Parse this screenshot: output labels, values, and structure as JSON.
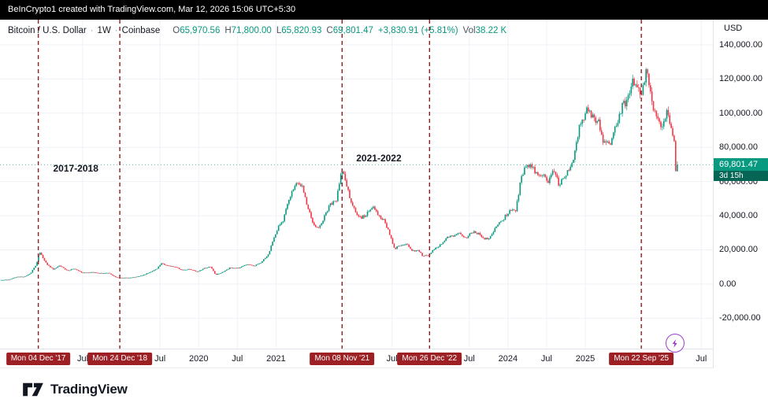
{
  "colors": {
    "up": "#089981",
    "down": "#f23645",
    "grid": "#eef1f7",
    "event_line": "#8c1d22",
    "event_badge": "#9d2025",
    "last_badge": "#089981",
    "countdown_bg": "#056656",
    "axis_line": "#e0e3eb",
    "topbar_bg": "#000000",
    "flash": "#9b3cc8",
    "text": "#131722",
    "muted": "#50535e"
  },
  "top_bar": {
    "text": "BeInCrypto1 created with TradingView.com, Mar 12, 2026 15:06 UTC+5:30"
  },
  "legend": {
    "title": "Bitcoin / U.S. Dollar",
    "separator": "·",
    "interval": "1W",
    "exchange": "Coinbase",
    "fields": [
      {
        "label": "O",
        "value": "65,970.56"
      },
      {
        "label": "H",
        "value": "71,800.00"
      },
      {
        "label": "L",
        "value": "65,820.93"
      },
      {
        "label": "C",
        "value": "69,801.47"
      }
    ],
    "change": "+3,830.91 (+5.81%)",
    "vol_label": "Vol",
    "vol_value": "38.22 K"
  },
  "price_scale": {
    "currency": "USD",
    "ticks": [
      {
        "value": 140000,
        "label": "140,000.00"
      },
      {
        "value": 120000,
        "label": "120,000.00"
      },
      {
        "value": 100000,
        "label": "100,000.00"
      },
      {
        "value": 80000,
        "label": "80,000.00"
      },
      {
        "value": 60000,
        "label": "60,000.00"
      },
      {
        "value": 40000,
        "label": "40,000.00"
      },
      {
        "value": 20000,
        "label": "20,000.00"
      },
      {
        "value": 0,
        "label": "0.00"
      },
      {
        "value": -20000,
        "label": "-20,000.00"
      }
    ],
    "last": {
      "price": 69801.47,
      "price_label": "69,801.47",
      "countdown": "3d 15h"
    }
  },
  "time_scale": {
    "ticks": [
      {
        "label": "Mon 04 Dec '17",
        "t": 2017.925,
        "badge": true
      },
      {
        "label": "Jul",
        "t": 2018.5,
        "badge": false
      },
      {
        "label": "Mon 24 Dec '18",
        "t": 2018.98,
        "badge": true
      },
      {
        "label": "Jul",
        "t": 2019.5,
        "badge": false
      },
      {
        "label": "2020",
        "t": 2020.0,
        "badge": false
      },
      {
        "label": "Jul",
        "t": 2020.5,
        "badge": false
      },
      {
        "label": "2021",
        "t": 2021.0,
        "badge": false
      },
      {
        "label": "Mon 08 Nov '21",
        "t": 2021.855,
        "badge": true
      },
      {
        "label": "Jul",
        "t": 2022.5,
        "badge": false
      },
      {
        "label": "Mon 26 Dec '22",
        "t": 2022.985,
        "badge": true
      },
      {
        "label": "Jul",
        "t": 2023.5,
        "badge": false
      },
      {
        "label": "2024",
        "t": 2024.0,
        "badge": false
      },
      {
        "label": "Jul",
        "t": 2024.5,
        "badge": false
      },
      {
        "label": "2025",
        "t": 2025.0,
        "badge": false
      },
      {
        "label": "Mon 22 Sep '25",
        "t": 2025.725,
        "badge": true
      },
      {
        "label": "Jul",
        "t": 2026.5,
        "badge": false
      }
    ]
  },
  "annotations": [
    {
      "text": "2017-2018",
      "t": 2018.41,
      "price": 67500
    },
    {
      "text": "2021-2022",
      "t": 2022.33,
      "price": 73500
    }
  ],
  "footer": {
    "brand": "TradingView"
  },
  "chart_data": {
    "type": "candlestick",
    "title": "Bitcoin / U.S. Dollar · 1W · Coinbase",
    "symbol": "BTCUSD",
    "exchange": "Coinbase",
    "interval": "1W",
    "currency": "USD",
    "x_domain_years": [
      2017.43,
      2026.65
    ],
    "y_view": [
      -37800,
      154700
    ],
    "y_axis": {
      "min": -20000,
      "max": 140000,
      "step": 20000
    },
    "last_candle": {
      "open": 65970.56,
      "high": 71800.0,
      "low": 65820.93,
      "close": 69801.47,
      "change": 3830.91,
      "change_pct": 5.81,
      "volume": "38.22 K"
    },
    "event_markers": [
      {
        "label": "Mon 04 Dec '17",
        "t": 2017.925
      },
      {
        "label": "Mon 24 Dec '18",
        "t": 2018.98
      },
      {
        "label": "Mon 08 Nov '21",
        "t": 2021.855
      },
      {
        "label": "Mon 26 Dec '22",
        "t": 2022.985
      },
      {
        "label": "Mon 22 Sep '25",
        "t": 2025.725
      }
    ],
    "price_path_anchors": [
      [
        2017.43,
        2300
      ],
      [
        2017.55,
        2600
      ],
      [
        2017.65,
        4200
      ],
      [
        2017.75,
        4350
      ],
      [
        2017.83,
        6500
      ],
      [
        2017.9,
        11500
      ],
      [
        2017.94,
        19200
      ],
      [
        2018.0,
        14000
      ],
      [
        2018.06,
        10500
      ],
      [
        2018.12,
        8600
      ],
      [
        2018.2,
        10800
      ],
      [
        2018.3,
        7700
      ],
      [
        2018.38,
        9000
      ],
      [
        2018.5,
        6500
      ],
      [
        2018.6,
        6900
      ],
      [
        2018.72,
        6350
      ],
      [
        2018.84,
        6400
      ],
      [
        2018.92,
        4100
      ],
      [
        2018.98,
        3600
      ],
      [
        2019.08,
        3700
      ],
      [
        2019.18,
        4000
      ],
      [
        2019.28,
        5200
      ],
      [
        2019.38,
        7200
      ],
      [
        2019.46,
        9000
      ],
      [
        2019.52,
        12300
      ],
      [
        2019.58,
        10800
      ],
      [
        2019.68,
        10300
      ],
      [
        2019.78,
        8200
      ],
      [
        2019.88,
        8600
      ],
      [
        2019.98,
        7200
      ],
      [
        2020.08,
        9300
      ],
      [
        2020.15,
        10200
      ],
      [
        2020.22,
        5400
      ],
      [
        2020.3,
        6800
      ],
      [
        2020.4,
        9400
      ],
      [
        2020.52,
        9250
      ],
      [
        2020.62,
        11600
      ],
      [
        2020.72,
        10700
      ],
      [
        2020.82,
        13100
      ],
      [
        2020.9,
        17500
      ],
      [
        2020.97,
        26000
      ],
      [
        2021.03,
        33500
      ],
      [
        2021.09,
        36500
      ],
      [
        2021.16,
        49000
      ],
      [
        2021.23,
        57000
      ],
      [
        2021.29,
        59500
      ],
      [
        2021.34,
        56500
      ],
      [
        2021.41,
        45000
      ],
      [
        2021.48,
        34500
      ],
      [
        2021.54,
        33000
      ],
      [
        2021.6,
        36500
      ],
      [
        2021.66,
        43000
      ],
      [
        2021.72,
        47500
      ],
      [
        2021.78,
        49500
      ],
      [
        2021.83,
        62500
      ],
      [
        2021.87,
        65500
      ],
      [
        2021.92,
        57000
      ],
      [
        2021.97,
        47500
      ],
      [
        2022.04,
        41500
      ],
      [
        2022.1,
        38500
      ],
      [
        2022.17,
        40500
      ],
      [
        2022.25,
        46000
      ],
      [
        2022.33,
        40000
      ],
      [
        2022.41,
        36500
      ],
      [
        2022.47,
        29000
      ],
      [
        2022.53,
        20500
      ],
      [
        2022.61,
        22800
      ],
      [
        2022.68,
        23800
      ],
      [
        2022.76,
        19400
      ],
      [
        2022.84,
        19600
      ],
      [
        2022.9,
        16300
      ],
      [
        2022.98,
        16800
      ],
      [
        2023.06,
        21200
      ],
      [
        2023.14,
        23200
      ],
      [
        2023.22,
        27800
      ],
      [
        2023.3,
        28400
      ],
      [
        2023.38,
        29600
      ],
      [
        2023.46,
        26700
      ],
      [
        2023.54,
        30500
      ],
      [
        2023.62,
        29300
      ],
      [
        2023.7,
        26100
      ],
      [
        2023.78,
        27600
      ],
      [
        2023.86,
        34800
      ],
      [
        2023.94,
        38000
      ],
      [
        2024.02,
        42800
      ],
      [
        2024.1,
        43500
      ],
      [
        2024.17,
        61500
      ],
      [
        2024.23,
        68500
      ],
      [
        2024.29,
        69800
      ],
      [
        2024.36,
        64500
      ],
      [
        2024.44,
        63800
      ],
      [
        2024.52,
        60500
      ],
      [
        2024.59,
        66800
      ],
      [
        2024.66,
        58200
      ],
      [
        2024.74,
        63400
      ],
      [
        2024.82,
        68000
      ],
      [
        2024.87,
        78000
      ],
      [
        2024.92,
        92000
      ],
      [
        2024.98,
        98000
      ],
      [
        2025.04,
        102500
      ],
      [
        2025.1,
        97000
      ],
      [
        2025.16,
        96500
      ],
      [
        2025.22,
        84500
      ],
      [
        2025.28,
        81500
      ],
      [
        2025.34,
        84000
      ],
      [
        2025.42,
        96000
      ],
      [
        2025.48,
        104500
      ],
      [
        2025.54,
        107000
      ],
      [
        2025.6,
        118500
      ],
      [
        2025.66,
        115500
      ],
      [
        2025.71,
        111500
      ],
      [
        2025.75,
        114000
      ],
      [
        2025.79,
        124000
      ],
      [
        2025.84,
        111000
      ],
      [
        2025.89,
        102500
      ],
      [
        2025.94,
        96500
      ],
      [
        2026.0,
        91500
      ],
      [
        2026.05,
        100500
      ],
      [
        2026.1,
        94500
      ],
      [
        2026.14,
        85500
      ],
      [
        2026.17,
        77000
      ],
      [
        2026.19,
        69801.47
      ]
    ]
  }
}
